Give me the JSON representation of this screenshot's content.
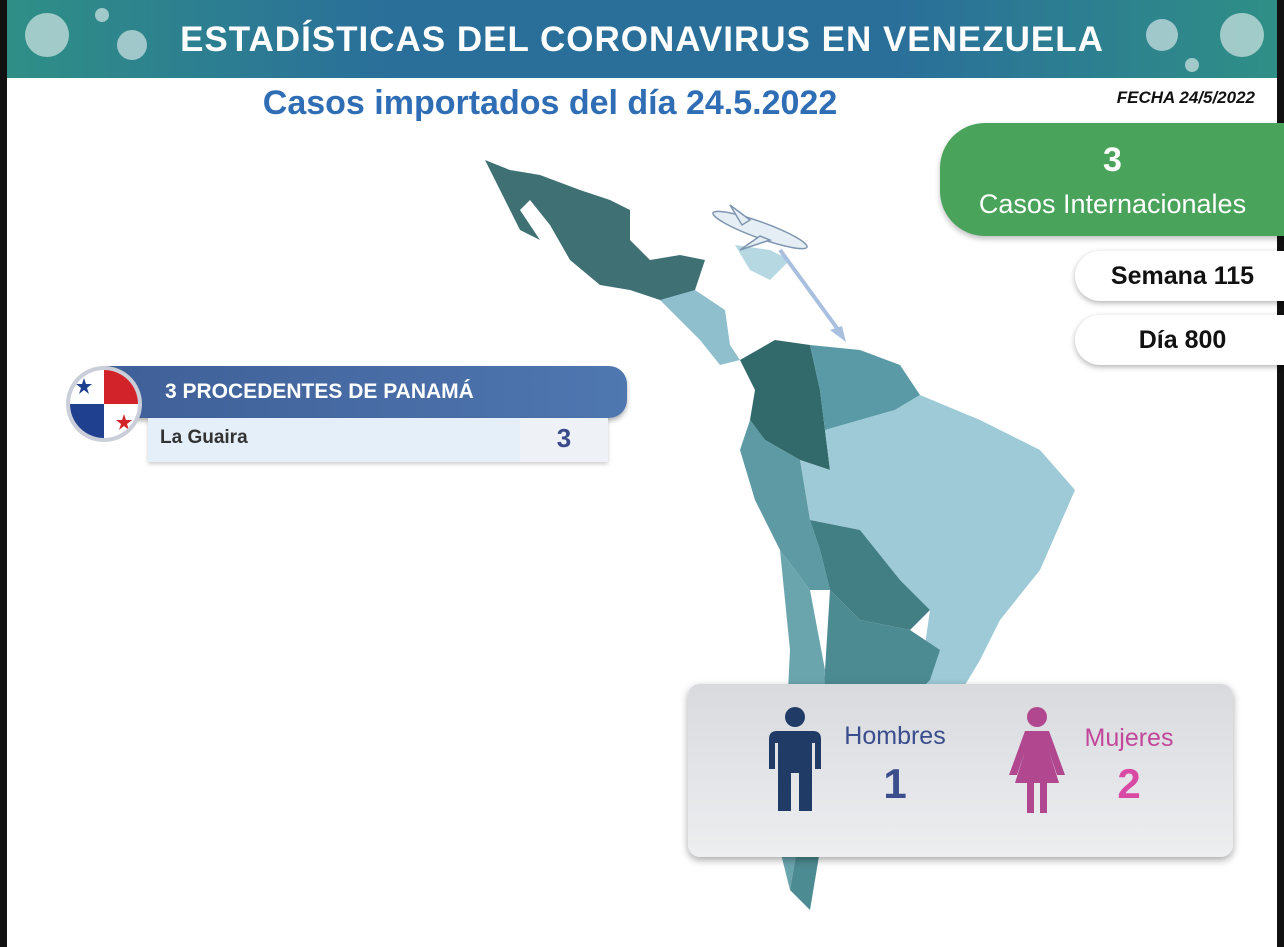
{
  "header": {
    "title": "ESTADÍSTICAS DEL CORONAVIRUS EN VENEZUELA"
  },
  "subtitle": "Casos importados del día 24.5.2022",
  "date": "FECHA 24/5/2022",
  "total": {
    "value": 3,
    "label": "Casos Internacionales"
  },
  "week": "Semana 115",
  "day": "Día 800",
  "origin": {
    "title": "3 PROCEDENTES DE PANAMÁ",
    "rows": [
      {
        "state": "La Guaira",
        "cases": 3
      }
    ]
  },
  "gender": {
    "men": {
      "label": "Hombres",
      "value": 1
    },
    "women": {
      "label": "Mujeres",
      "value": 2
    }
  }
}
